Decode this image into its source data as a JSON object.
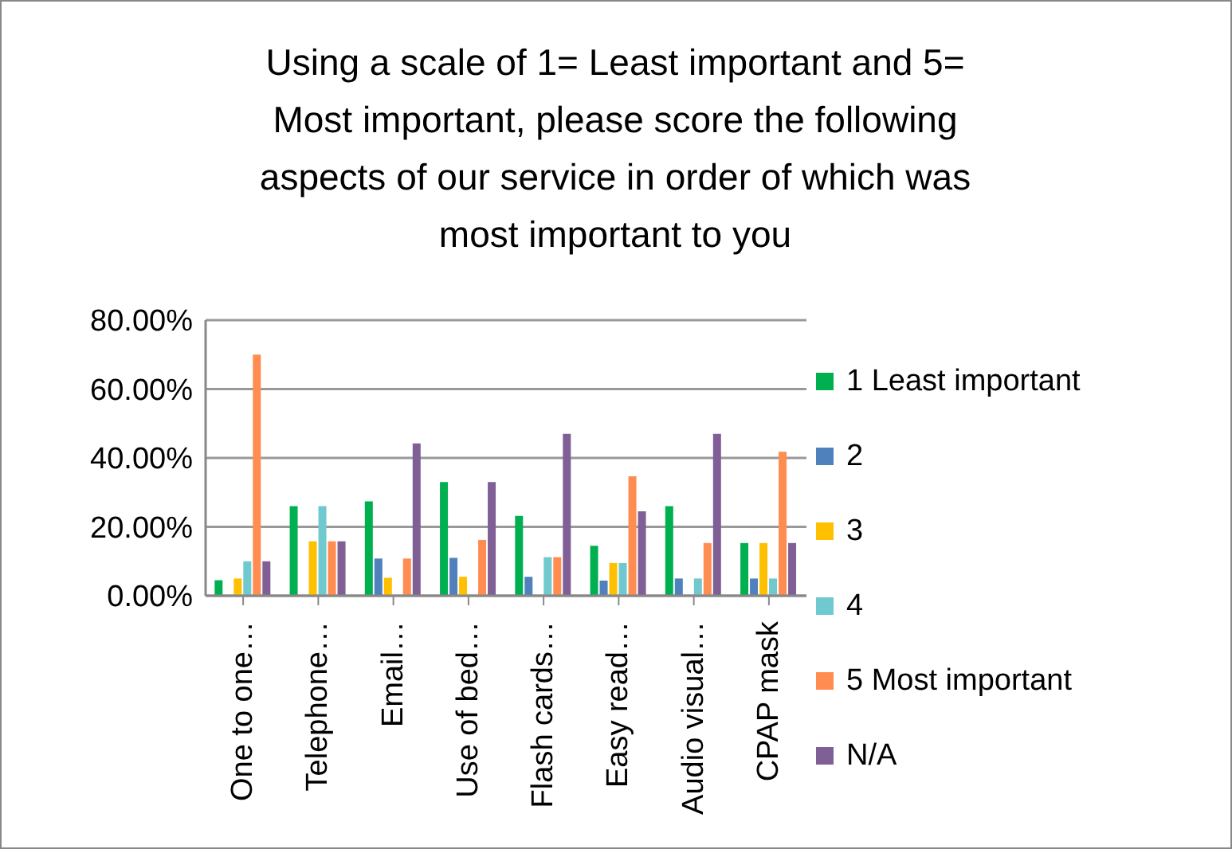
{
  "chart_data": {
    "type": "bar",
    "title": "Using a scale of 1= Least important and 5= Most important, please score the following aspects of our service in order of which was most important to you",
    "categories": [
      "One to one…",
      "Telephone…",
      "Email…",
      "Use of bed…",
      "Flash cards…",
      "Easy read…",
      "Audio visual…",
      "CPAP mask"
    ],
    "series": [
      {
        "name": "1  Least important",
        "color": "#00b050",
        "values": [
          4.5,
          26,
          27.4,
          33,
          23.2,
          14.5,
          26,
          15.3
        ]
      },
      {
        "name": "2",
        "color": "#4f81bd",
        "values": [
          0,
          0,
          10.8,
          11,
          5.5,
          4.4,
          5,
          5
        ]
      },
      {
        "name": "3",
        "color": "#ffc000",
        "values": [
          5,
          15.8,
          5.2,
          5.5,
          0,
          9.5,
          0,
          15.3
        ]
      },
      {
        "name": "4",
        "color": "#6fc9cf",
        "values": [
          10,
          26,
          0,
          0,
          11.2,
          9.5,
          5,
          5
        ]
      },
      {
        "name": "5 Most important",
        "color": "#ff8c50",
        "values": [
          70,
          15.8,
          10.8,
          16.2,
          11.2,
          34.7,
          15.3,
          41.8
        ]
      },
      {
        "name": "N/A",
        "color": "#7f5f96",
        "values": [
          10,
          15.8,
          44.2,
          33,
          47,
          24.5,
          47,
          15.3
        ]
      }
    ],
    "ylim": [
      0,
      80
    ],
    "yticks": [
      {
        "value": 0,
        "label": "0.00%"
      },
      {
        "value": 20,
        "label": "20.00%"
      },
      {
        "value": 40,
        "label": "40.00%"
      },
      {
        "value": 60,
        "label": "60.00%"
      },
      {
        "value": 80,
        "label": "80.00%"
      }
    ],
    "grid": "y",
    "legend": "right"
  }
}
